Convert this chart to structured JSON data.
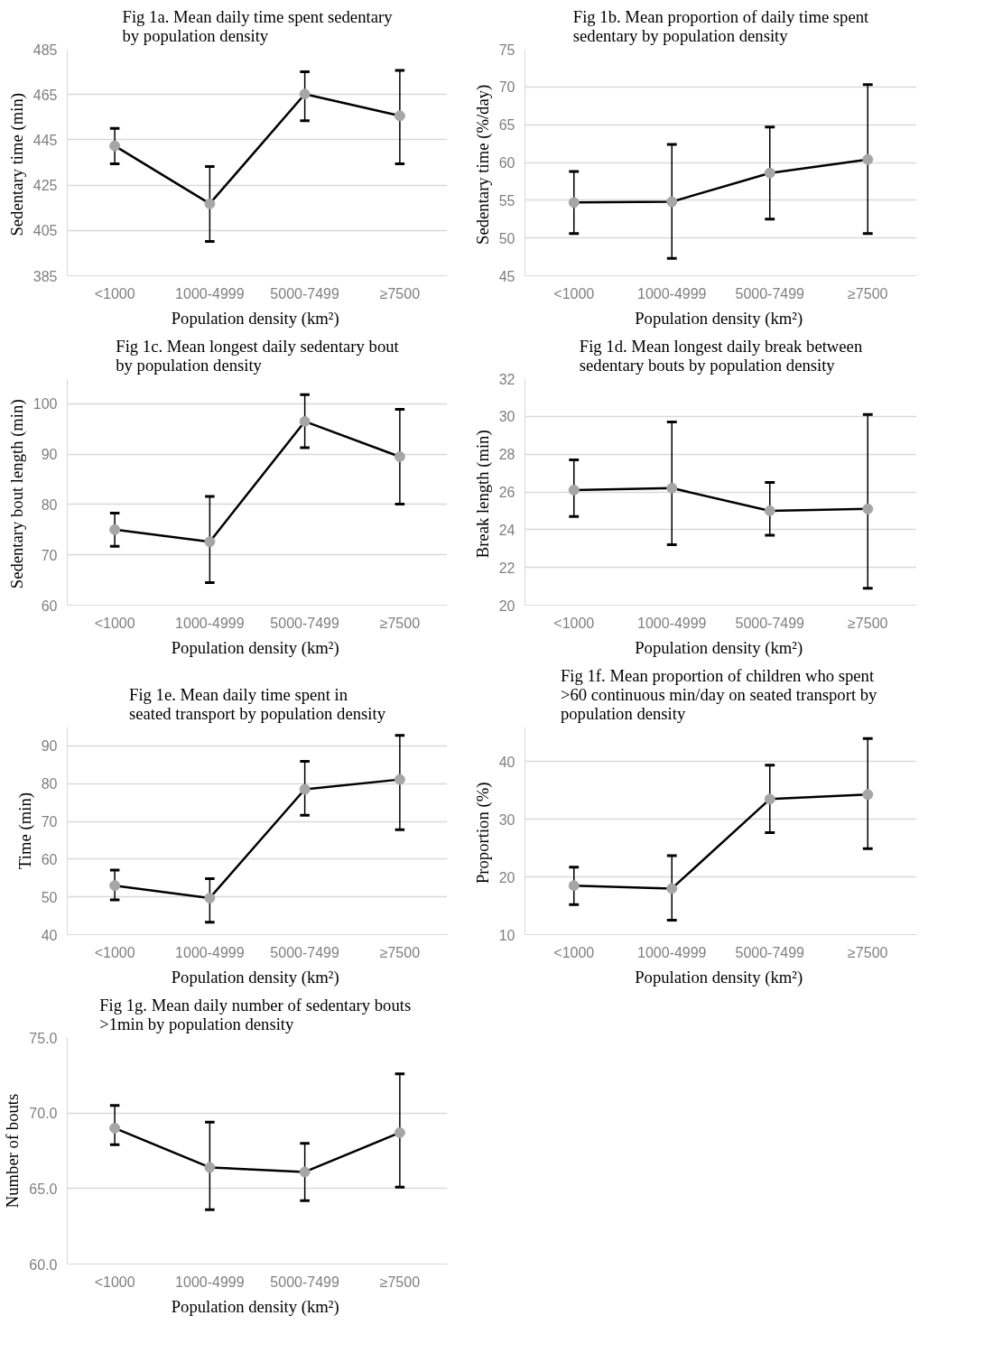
{
  "chart_data": [
    {
      "type": "line",
      "title": "Fig 1a. Mean daily time spent sedentary\nby population density",
      "xlabel": "Population density  (km²)",
      "ylabel": "Sedentary  time (min)",
      "categories": [
        "<1000",
        "1000-4999",
        "5000-7499",
        "≥7500"
      ],
      "ylim": [
        385,
        485
      ],
      "yticks": [
        385,
        405,
        425,
        445,
        465,
        485
      ],
      "grid": "y",
      "marker": "circle",
      "line_style": "solid",
      "series": [
        {
          "color": "#000000",
          "values": [
            442.3,
            416.8,
            465.2,
            455.6
          ],
          "errors": [
            [
              434.4,
              450
            ],
            [
              400.1,
              433.2
            ],
            [
              453.4,
              475
            ],
            [
              434.4,
              475.6
            ]
          ]
        }
      ]
    },
    {
      "type": "line",
      "title": "Fig 1b. Mean proportion of daily time spent\nsedentary by population density",
      "xlabel": "Population density  (km²)",
      "ylabel": "Sedentary  time (%/day)",
      "categories": [
        "<1000",
        "1000-4999",
        "5000-7499",
        "≥7500"
      ],
      "ylim": [
        45,
        75
      ],
      "yticks": [
        45,
        50,
        55,
        60,
        65,
        70,
        75
      ],
      "grid": "y",
      "marker": "circle",
      "line_style": "solid",
      "series": [
        {
          "color": "#000000",
          "values": [
            54.7,
            54.8,
            58.6,
            60.4
          ],
          "errors": [
            [
              50.6,
              58.8
            ],
            [
              47.3,
              62.4
            ],
            [
              52.5,
              64.7
            ],
            [
              50.6,
              70.3
            ]
          ]
        }
      ]
    },
    {
      "type": "line",
      "title": "Fig 1c. Mean longest daily sedentary bout\nby population density",
      "xlabel": "Population density  (km²)",
      "ylabel": "Sedentary  bout length (min)",
      "categories": [
        "<1000",
        "1000-4999",
        "5000-7499",
        "≥7500"
      ],
      "ylim": [
        60,
        105
      ],
      "yticks": [
        60,
        70,
        80,
        90,
        100
      ],
      "grid": "y",
      "marker": "circle",
      "line_style": "solid",
      "series": [
        {
          "color": "#000000",
          "values": [
            75.0,
            72.6,
            96.5,
            89.5
          ],
          "errors": [
            [
              71.7,
              78.3
            ],
            [
              64.5,
              81.6
            ],
            [
              91.3,
              101.8
            ],
            [
              80.1,
              98.9
            ]
          ]
        }
      ]
    },
    {
      "type": "line",
      "title": "Fig 1d. Mean longest daily break between\nsedentary bouts by population density",
      "xlabel": "Population density  (km²)",
      "ylabel": "Break  length (min)",
      "categories": [
        "<1000",
        "1000-4999",
        "5000-7499",
        "≥7500"
      ],
      "ylim": [
        20,
        32
      ],
      "yticks": [
        20,
        22,
        24,
        26,
        28,
        30,
        32
      ],
      "grid": "y",
      "marker": "circle",
      "line_style": "solid",
      "series": [
        {
          "color": "#000000",
          "values": [
            26.1,
            26.2,
            25.0,
            25.1
          ],
          "errors": [
            [
              24.7,
              27.7
            ],
            [
              23.2,
              29.7
            ],
            [
              23.7,
              26.5
            ],
            [
              20.9,
              30.1
            ]
          ]
        }
      ]
    },
    {
      "type": "line",
      "title": "Fig 1e. Mean daily time spent in\nseated transport by population density",
      "xlabel": "Population density  (km²)",
      "ylabel": "Time (min)",
      "categories": [
        "<1000",
        "1000-4999",
        "5000-7499",
        "≥7500"
      ],
      "ylim": [
        40,
        95
      ],
      "yticks": [
        40,
        50,
        60,
        70,
        80,
        90
      ],
      "grid": "y",
      "marker": "circle",
      "line_style": "solid",
      "series": [
        {
          "color": "#000000",
          "values": [
            53.0,
            49.7,
            78.5,
            81.1
          ],
          "errors": [
            [
              49.2,
              57.1
            ],
            [
              43.3,
              54.8
            ],
            [
              71.6,
              85.9
            ],
            [
              67.8,
              92.8
            ]
          ]
        }
      ]
    },
    {
      "type": "line",
      "title": "Fig 1f. Mean proportion of children who spent\n>60 continuous min/day  on seated transport by\npopulation density",
      "xlabel": "Population density  (km²)",
      "ylabel": "Proportion  (%)",
      "categories": [
        "<1000",
        "1000-4999",
        "5000-7499",
        "≥7500"
      ],
      "ylim": [
        10,
        46
      ],
      "yticks": [
        10,
        20,
        30,
        40
      ],
      "grid": "y",
      "marker": "circle",
      "line_style": "solid",
      "series": [
        {
          "color": "#000000",
          "values": [
            18.5,
            18.0,
            33.5,
            34.3
          ],
          "errors": [
            [
              15.2,
              21.7
            ],
            [
              12.5,
              23.7
            ],
            [
              27.7,
              39.4
            ],
            [
              24.9,
              44.0
            ]
          ]
        }
      ]
    },
    {
      "type": "line",
      "title": "Fig 1g. Mean daily number of sedentary  bouts\n>1min by population density",
      "xlabel": "Population density  (km²)",
      "ylabel": "Number of bouts",
      "categories": [
        "<1000",
        "1000-4999",
        "5000-7499",
        "≥7500"
      ],
      "ylim": [
        60,
        75
      ],
      "yticks": [
        {
          "value": 60,
          "label": "60.0"
        },
        {
          "value": 65,
          "label": "65.0"
        },
        {
          "value": 70,
          "label": "70.0"
        },
        {
          "value": 75,
          "label": "75.0"
        }
      ],
      "grid": "y",
      "marker": "circle",
      "line_style": "solid",
      "series": [
        {
          "color": "#000000",
          "values": [
            69.0,
            66.4,
            66.1,
            68.7
          ],
          "errors": [
            [
              67.9,
              70.5
            ],
            [
              63.6,
              69.4
            ],
            [
              64.2,
              68.0
            ],
            [
              65.1,
              72.6
            ]
          ]
        }
      ]
    }
  ]
}
